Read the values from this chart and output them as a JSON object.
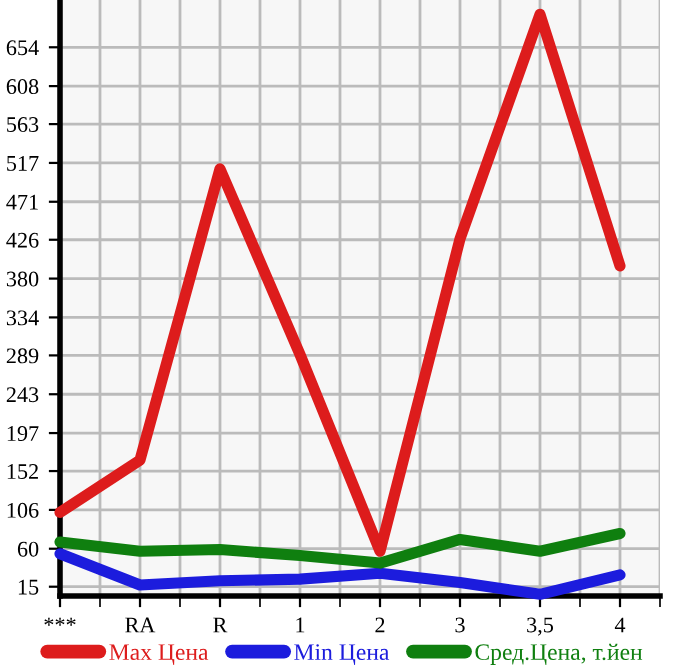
{
  "chart_data": {
    "type": "line",
    "categories": [
      "***",
      "RA",
      "R",
      "1",
      "2",
      "3",
      "3,5",
      "4"
    ],
    "series": [
      {
        "name": "Max Цена",
        "color": "#dd1c1c",
        "values": [
          103,
          165,
          510,
          290,
          57,
          427,
          693,
          395
        ]
      },
      {
        "name": "Min Цена",
        "color": "#1c1cdd",
        "values": [
          54,
          17,
          22,
          24,
          31,
          20,
          6,
          29
        ]
      },
      {
        "name": "Сред.Цена, т.йен",
        "color": "#0f7f0f",
        "values": [
          68,
          57,
          59,
          52,
          43,
          71,
          57,
          78
        ]
      }
    ],
    "ylim": [
      4,
      710
    ],
    "yticks": [
      15,
      60,
      106,
      152,
      197,
      243,
      289,
      334,
      380,
      426,
      471,
      517,
      563,
      608,
      654
    ],
    "grid": true,
    "legend": "bottom",
    "marker": "none",
    "line_style": "solid"
  }
}
